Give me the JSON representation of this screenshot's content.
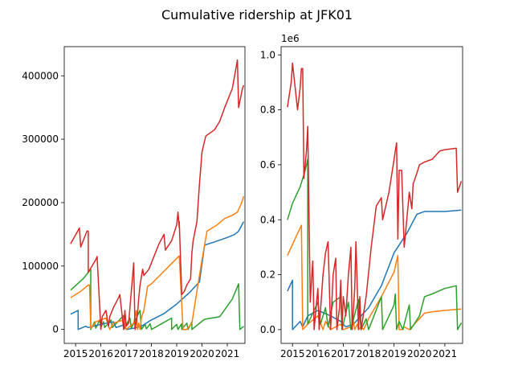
{
  "title": "Cumulative ridership at JFK01",
  "colors": {
    "blue": "#1f77b4",
    "orange": "#ff7f0e",
    "green": "#2ca02c",
    "red": "#d62728"
  },
  "chart_data": [
    {
      "type": "line",
      "title": "",
      "xlabel": "",
      "ylabel": "",
      "xlim": [
        2014.55,
        2021.7
      ],
      "ylim": [
        -22000,
        446000
      ],
      "x_ticks": [
        {
          "v": 2015,
          "label": "2015"
        },
        {
          "v": 2016,
          "label": "2016"
        },
        {
          "v": 2017,
          "label": "2017"
        },
        {
          "v": 2018,
          "label": "2018"
        },
        {
          "v": 2019,
          "label": "2019"
        },
        {
          "v": 2020,
          "label": "2020"
        },
        {
          "v": 2021,
          "label": "2021"
        }
      ],
      "y_ticks": [
        {
          "v": 0,
          "label": "0"
        },
        {
          "v": 100000,
          "label": "100000"
        },
        {
          "v": 200000,
          "label": "200000"
        },
        {
          "v": 300000,
          "label": "300000"
        },
        {
          "v": 400000,
          "label": "400000"
        }
      ],
      "scale_label": "",
      "series": [
        {
          "color": "#2ca02c",
          "x": [
            2014.8,
            2015.3,
            2015.6,
            2015.6,
            2015.75,
            2015.8,
            2015.95,
            2016.0,
            2016.1,
            2016.15,
            2016.4,
            2016.45,
            2016.9,
            2016.9,
            2017.15,
            2017.2,
            2017.55,
            2017.6,
            2017.75,
            2017.8,
            2017.95,
            2018.0,
            2018.8,
            2018.8,
            2019.0,
            2019.05,
            2019.2,
            2019.2,
            2019.4,
            2019.45,
            2019.6,
            2019.6,
            2020.1,
            2020.7,
            2021.2,
            2021.45,
            2021.5,
            2021.65
          ],
          "y": [
            62000,
            80000,
            95000,
            0,
            12000,
            2000,
            15000,
            3000,
            12000,
            3000,
            15000,
            3000,
            22000,
            0,
            18000,
            2000,
            30000,
            0,
            8000,
            1000,
            9000,
            0,
            18000,
            0,
            8000,
            0,
            9000,
            0,
            10000,
            0,
            12000,
            0,
            16000,
            20000,
            48000,
            72000,
            0,
            5000
          ]
        },
        {
          "color": "#1f77b4",
          "x": [
            2014.8,
            2015.1,
            2015.1,
            2015.4,
            2015.5,
            2016.0,
            2016.5,
            2016.6,
            2016.9,
            2017.0,
            2017.3,
            2017.6,
            2018.0,
            2018.5,
            2019.0,
            2019.5,
            2019.9,
            2020.1,
            2020.5,
            2021.0,
            2021.3,
            2021.45,
            2021.65
          ],
          "y": [
            24000,
            30000,
            0,
            5000,
            3000,
            8000,
            12000,
            3000,
            7000,
            0,
            2000,
            5000,
            15000,
            25000,
            40000,
            58000,
            75000,
            133000,
            138000,
            145000,
            150000,
            155000,
            170000
          ]
        },
        {
          "color": "#ff7f0e",
          "x": [
            2014.8,
            2015.2,
            2015.5,
            2015.55,
            2015.6,
            2015.8,
            2016.2,
            2016.35,
            2016.5,
            2016.9,
            2017.0,
            2017.3,
            2017.4,
            2017.45,
            2017.5,
            2017.55,
            2017.6,
            2017.7,
            2017.85,
            2018.0,
            2018.5,
            2019.0,
            2019.1,
            2019.25,
            2019.4,
            2019.6,
            2019.8,
            2020.0,
            2020.2,
            2020.6,
            2020.9,
            2021.2,
            2021.4,
            2021.55,
            2021.65
          ],
          "y": [
            50000,
            60000,
            70000,
            70000,
            2000,
            12000,
            18000,
            0,
            10000,
            15000,
            0,
            10000,
            30000,
            0,
            10000,
            0,
            18000,
            30000,
            68000,
            72000,
            92000,
            112000,
            116000,
            0,
            0,
            10000,
            60000,
            110000,
            155000,
            165000,
            175000,
            180000,
            185000,
            198000,
            210000
          ]
        },
        {
          "color": "#d62728",
          "x": [
            2014.8,
            2015.15,
            2015.2,
            2015.4,
            2015.45,
            2015.5,
            2015.5,
            2015.8,
            2015.85,
            2016.0,
            2016.05,
            2016.2,
            2016.3,
            2016.35,
            2016.5,
            2016.7,
            2016.75,
            2016.9,
            2016.95,
            2017.0,
            2017.1,
            2017.3,
            2017.35,
            2017.45,
            2017.5,
            2017.55,
            2017.65,
            2017.7,
            2017.9,
            2018.1,
            2018.3,
            2018.5,
            2018.55,
            2018.8,
            2019.0,
            2019.05,
            2019.1,
            2019.1,
            2019.2,
            2019.3,
            2019.4,
            2019.55,
            2019.6,
            2019.65,
            2019.8,
            2019.9,
            2020.0,
            2020.15,
            2020.5,
            2020.7,
            2020.9,
            2021.0,
            2021.2,
            2021.4,
            2021.45,
            2021.6,
            2021.65
          ],
          "y": [
            135000,
            160000,
            130000,
            150000,
            155000,
            155000,
            90000,
            110000,
            115000,
            0,
            20000,
            30000,
            5000,
            20000,
            35000,
            50000,
            55000,
            0,
            30000,
            5000,
            10000,
            105000,
            0,
            25000,
            50000,
            70000,
            95000,
            85000,
            95000,
            115000,
            135000,
            150000,
            125000,
            140000,
            165000,
            185000,
            160000,
            170000,
            55000,
            60000,
            70000,
            80000,
            120000,
            140000,
            170000,
            230000,
            280000,
            305000,
            315000,
            328000,
            350000,
            360000,
            380000,
            425000,
            350000,
            380000,
            385000
          ]
        }
      ]
    },
    {
      "type": "line",
      "title": "",
      "xlabel": "",
      "ylabel": "",
      "xlim": [
        2014.55,
        2021.7
      ],
      "ylim": [
        -0.05,
        1.03
      ],
      "x_ticks": [
        {
          "v": 2015,
          "label": "2015"
        },
        {
          "v": 2016,
          "label": "2016"
        },
        {
          "v": 2017,
          "label": "2017"
        },
        {
          "v": 2018,
          "label": "2018"
        },
        {
          "v": 2019,
          "label": "2019"
        },
        {
          "v": 2020,
          "label": "2020"
        },
        {
          "v": 2021,
          "label": "2021"
        }
      ],
      "y_ticks": [
        {
          "v": 0,
          "label": "0.0"
        },
        {
          "v": 0.2,
          "label": "0.2"
        },
        {
          "v": 0.4,
          "label": "0.4"
        },
        {
          "v": 0.6,
          "label": "0.6"
        },
        {
          "v": 0.8,
          "label": "0.8"
        },
        {
          "v": 1.0,
          "label": "1.0"
        }
      ],
      "scale_label": "1e6",
      "series": [
        {
          "color": "#1f77b4",
          "x": [
            2014.8,
            2015.0,
            2015.0,
            2015.3,
            2015.4,
            2015.6,
            2016.0,
            2016.5,
            2016.9,
            2017.1,
            2017.4,
            2017.6,
            2018.0,
            2018.5,
            2019.0,
            2019.5,
            2019.9,
            2020.2,
            2020.5,
            2021.0,
            2021.65
          ],
          "y": [
            0.14,
            0.18,
            0.0,
            0.03,
            0.01,
            0.05,
            0.07,
            0.05,
            0.03,
            0.01,
            0.02,
            0.04,
            0.08,
            0.16,
            0.28,
            0.35,
            0.42,
            0.43,
            0.43,
            0.43,
            0.435
          ]
        },
        {
          "color": "#ff7f0e",
          "x": [
            2014.8,
            2015.0,
            2015.2,
            2015.35,
            2015.4,
            2015.6,
            2016.0,
            2016.2,
            2016.3,
            2016.5,
            2016.9,
            2017.0,
            2017.3,
            2017.4,
            2017.45,
            2017.55,
            2017.6,
            2017.7,
            2017.8,
            2018.0,
            2018.5,
            2019.0,
            2019.15,
            2019.2,
            2019.3,
            2019.4,
            2019.6,
            2019.8,
            2020.0,
            2020.2,
            2020.5,
            2021.0,
            2021.65
          ],
          "y": [
            0.27,
            0.31,
            0.35,
            0.38,
            0.0,
            0.02,
            0.05,
            0.0,
            0.03,
            0.0,
            0.02,
            0.0,
            0.01,
            0.03,
            0.0,
            0.02,
            0.0,
            0.01,
            0.0,
            0.04,
            0.12,
            0.21,
            0.27,
            0.0,
            0.0,
            0.01,
            0.0,
            0.02,
            0.04,
            0.06,
            0.065,
            0.07,
            0.075
          ]
        },
        {
          "color": "#2ca02c",
          "x": [
            2014.8,
            2015.0,
            2015.3,
            2015.5,
            2015.6,
            2015.6,
            2015.75,
            2016.0,
            2016.1,
            2016.3,
            2016.4,
            2016.6,
            2016.9,
            2016.95,
            2017.2,
            2017.3,
            2017.6,
            2017.7,
            2017.9,
            2018.0,
            2018.5,
            2018.55,
            2019.0,
            2019.05,
            2019.1,
            2019.2,
            2019.35,
            2019.4,
            2019.6,
            2019.65,
            2020.0,
            2020.2,
            2020.5,
            2021.0,
            2021.45,
            2021.5,
            2021.65
          ],
          "y": [
            0.4,
            0.46,
            0.52,
            0.58,
            0.62,
            0.02,
            0.05,
            0.1,
            0.02,
            0.08,
            0.01,
            0.1,
            0.12,
            0.0,
            0.1,
            0.0,
            0.11,
            0.0,
            0.04,
            0.0,
            0.12,
            0.0,
            0.09,
            0.13,
            0.0,
            0.03,
            0.0,
            0.02,
            0.09,
            0.0,
            0.05,
            0.12,
            0.13,
            0.15,
            0.16,
            0.0,
            0.025
          ]
        },
        {
          "color": "#d62728",
          "x": [
            2014.8,
            2014.95,
            2015.0,
            2015.0,
            2015.2,
            2015.3,
            2015.35,
            2015.4,
            2015.45,
            2015.5,
            2015.55,
            2015.6,
            2015.7,
            2015.75,
            2015.8,
            2015.85,
            2016.0,
            2016.05,
            2016.2,
            2016.3,
            2016.4,
            2016.5,
            2016.6,
            2016.7,
            2016.75,
            2016.85,
            2016.9,
            2016.95,
            2017.0,
            2017.1,
            2017.2,
            2017.3,
            2017.35,
            2017.45,
            2017.5,
            2017.6,
            2017.65,
            2017.7,
            2017.9,
            2018.1,
            2018.3,
            2018.5,
            2018.55,
            2018.8,
            2019.0,
            2019.05,
            2019.1,
            2019.15,
            2019.2,
            2019.3,
            2019.4,
            2019.5,
            2019.6,
            2019.7,
            2019.75,
            2019.9,
            2020.0,
            2020.2,
            2020.5,
            2020.8,
            2021.0,
            2021.45,
            2021.5,
            2021.65
          ],
          "y": [
            0.81,
            0.9,
            0.97,
            0.97,
            0.8,
            0.88,
            0.95,
            0.95,
            0.55,
            0.6,
            0.65,
            0.74,
            0.1,
            0.18,
            0.25,
            0.0,
            0.15,
            0.0,
            0.2,
            0.28,
            0.32,
            0.0,
            0.2,
            0.26,
            0.0,
            0.08,
            0.18,
            0.0,
            0.12,
            0.05,
            0.2,
            0.3,
            0.0,
            0.15,
            0.32,
            0.0,
            0.12,
            0.0,
            0.12,
            0.3,
            0.45,
            0.48,
            0.4,
            0.5,
            0.62,
            0.65,
            0.68,
            0.33,
            0.58,
            0.58,
            0.3,
            0.4,
            0.5,
            0.44,
            0.53,
            0.57,
            0.6,
            0.61,
            0.62,
            0.65,
            0.655,
            0.66,
            0.5,
            0.54
          ]
        }
      ]
    }
  ]
}
